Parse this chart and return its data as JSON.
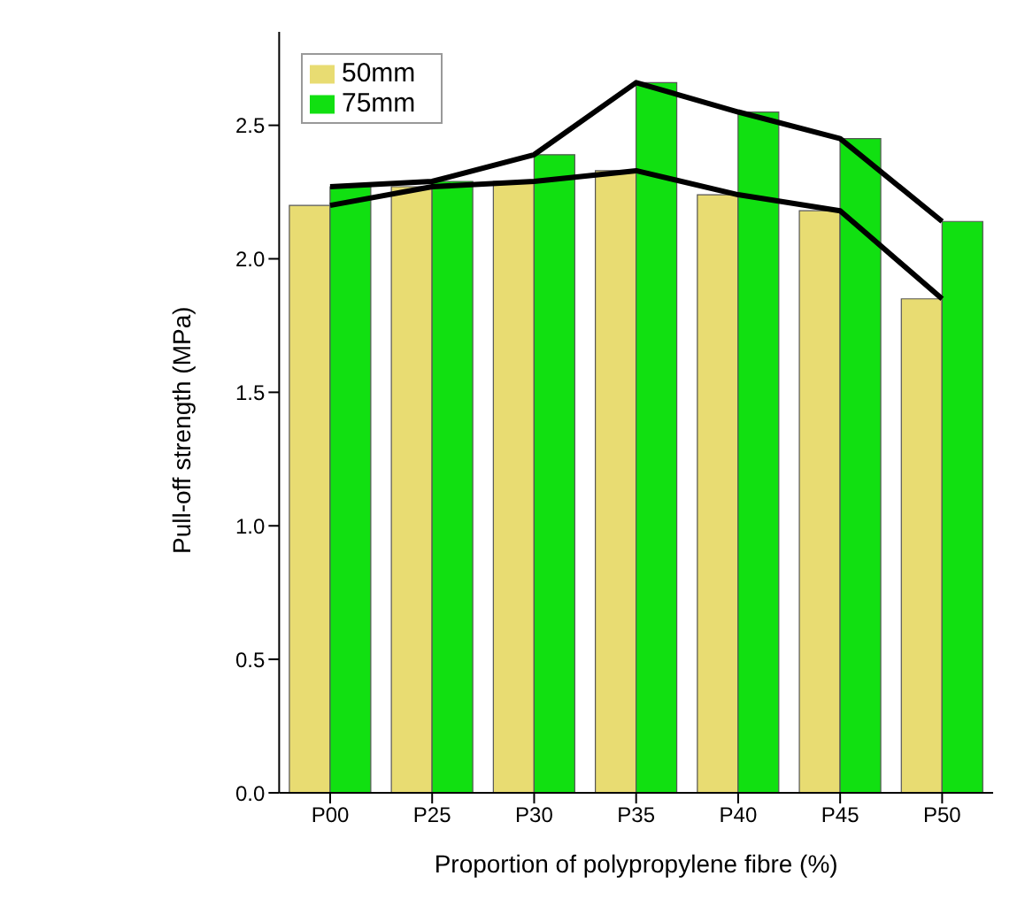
{
  "chart_data": {
    "type": "bar",
    "xlabel": "Proportion of polypropylene fibre (%)",
    "ylabel": "Pull-off strength (MPa)",
    "categories": [
      "P00",
      "P25",
      "P30",
      "P35",
      "P40",
      "P45",
      "P50"
    ],
    "series": [
      {
        "name": "50mm",
        "color": "#e8dc72",
        "values": [
          2.2,
          2.27,
          2.29,
          2.33,
          2.24,
          2.18,
          1.85
        ]
      },
      {
        "name": "75mm",
        "color": "#11e011",
        "values": [
          2.27,
          2.29,
          2.39,
          2.66,
          2.55,
          2.45,
          2.14
        ]
      },
      {
        "type": "line",
        "color": "#000000",
        "values": [
          2.2,
          2.27,
          2.29,
          2.33,
          2.24,
          2.18,
          1.85
        ]
      },
      {
        "type": "line",
        "color": "#000000",
        "values": [
          2.27,
          2.29,
          2.39,
          2.66,
          2.55,
          2.45,
          2.14
        ]
      }
    ],
    "ylim": [
      0,
      2.85
    ],
    "yticks": [
      {
        "value": 0,
        "label": "0.0"
      },
      0.5,
      {
        "value": 1,
        "label": "1.0"
      },
      1.5,
      {
        "value": 2,
        "label": "2.0"
      },
      2.5
    ],
    "legend": "top left",
    "marker": "none"
  }
}
